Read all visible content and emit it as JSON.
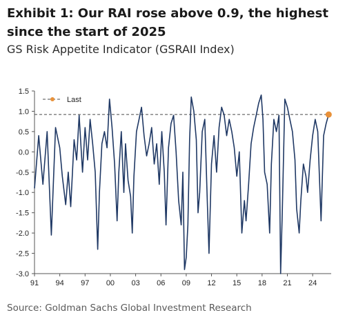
{
  "title": "Exhibit 1: Our RAI rose above 0.9, the highest since the start of 2025",
  "subtitle": "GS Risk Appetite Indicator (GSRAII Index)",
  "source": "Source: Goldman Sachs Global Investment Research",
  "colors": {
    "series": "#1f3864",
    "last_marker": "#e8913a",
    "last_line": "#4a4a4a"
  },
  "chart_data": {
    "type": "line",
    "title": "GS Risk Appetite Indicator (GSRAII Index)",
    "legend": [
      "Last"
    ],
    "legend_placement": "top-left",
    "grid": false,
    "ylim": [
      -3.0,
      1.5
    ],
    "yticks": [
      "1.5",
      "1.0",
      "0.5",
      "0.0",
      "-0.5",
      "-1.0",
      "-1.5",
      "-2.0",
      "-2.5",
      "-3.0"
    ],
    "xlim": [
      1991,
      2026.2
    ],
    "xticks": [
      "91",
      "94",
      "97",
      "00",
      "03",
      "06",
      "09",
      "12",
      "15",
      "18",
      "21",
      "24"
    ],
    "last_value": 0.92,
    "series": [
      {
        "x": [
          1991.0,
          1991.5,
          1992.0,
          1992.5,
          1993.0,
          1993.5,
          1994.0,
          1994.3,
          1994.7,
          1995.0,
          1995.3,
          1995.7,
          1996.0,
          1996.3,
          1996.7,
          1997.0,
          1997.3,
          1997.6,
          1997.9,
          1998.2,
          1998.5,
          1998.7,
          1999.0,
          1999.3,
          1999.6,
          1999.9,
          2000.2,
          2000.5,
          2000.8,
          2001.0,
          2001.3,
          2001.6,
          2001.8,
          2002.1,
          2002.4,
          2002.6,
          2002.8,
          2003.1,
          2003.4,
          2003.7,
          2004.0,
          2004.3,
          2004.6,
          2004.9,
          2005.2,
          2005.5,
          2005.8,
          2006.1,
          2006.4,
          2006.6,
          2006.9,
          2007.2,
          2007.5,
          2007.8,
          2008.1,
          2008.4,
          2008.6,
          2008.8,
          2009.0,
          2009.2,
          2009.4,
          2009.6,
          2009.9,
          2010.2,
          2010.4,
          2010.6,
          2010.9,
          2011.2,
          2011.5,
          2011.7,
          2012.0,
          2012.3,
          2012.6,
          2012.9,
          2013.2,
          2013.5,
          2013.8,
          2014.1,
          2014.4,
          2014.7,
          2015.0,
          2015.3,
          2015.6,
          2015.9,
          2016.1,
          2016.4,
          2016.7,
          2017.0,
          2017.3,
          2017.6,
          2017.9,
          2018.1,
          2018.3,
          2018.6,
          2018.9,
          2019.1,
          2019.4,
          2019.7,
          2020.0,
          2020.2,
          2020.4,
          2020.7,
          2021.0,
          2021.3,
          2021.6,
          2021.9,
          2022.1,
          2022.4,
          2022.6,
          2022.9,
          2023.2,
          2023.4,
          2023.7,
          2024.0,
          2024.3,
          2024.6,
          2024.8,
          2025.0,
          2025.3,
          2025.6,
          2025.9
        ],
        "y": [
          -0.9,
          0.4,
          -0.8,
          0.5,
          -2.05,
          0.6,
          0.1,
          -0.6,
          -1.3,
          -0.5,
          -1.35,
          0.3,
          -0.2,
          0.9,
          -0.5,
          0.6,
          -0.2,
          0.8,
          0.2,
          -0.5,
          -2.4,
          -1.0,
          0.2,
          0.5,
          0.1,
          1.3,
          0.6,
          -0.3,
          -1.7,
          -0.5,
          0.5,
          -1.0,
          0.2,
          -0.7,
          -1.1,
          -2.0,
          -0.6,
          0.5,
          0.8,
          1.1,
          0.4,
          -0.1,
          0.2,
          0.6,
          -0.3,
          0.2,
          -0.8,
          0.5,
          -0.5,
          -1.8,
          0.1,
          0.7,
          0.9,
          0.0,
          -1.2,
          -1.8,
          -0.5,
          -2.9,
          -2.6,
          -1.8,
          0.3,
          1.35,
          1.0,
          0.3,
          -1.5,
          -1.0,
          0.5,
          0.8,
          -1.2,
          -2.5,
          -0.3,
          0.4,
          -0.5,
          0.6,
          1.1,
          0.9,
          0.4,
          0.8,
          0.5,
          0.1,
          -0.6,
          0.0,
          -2.0,
          -1.2,
          -1.7,
          -0.8,
          0.2,
          0.6,
          0.9,
          1.2,
          1.4,
          0.8,
          -0.5,
          -0.8,
          -2.0,
          -0.3,
          0.8,
          0.5,
          0.9,
          -3.0,
          -1.5,
          1.3,
          1.1,
          0.8,
          0.5,
          -0.2,
          -1.4,
          -2.0,
          -1.2,
          -0.3,
          -0.6,
          -1.0,
          -0.2,
          0.4,
          0.8,
          0.5,
          -0.6,
          -1.7,
          0.4,
          0.7,
          0.92
        ]
      }
    ]
  }
}
